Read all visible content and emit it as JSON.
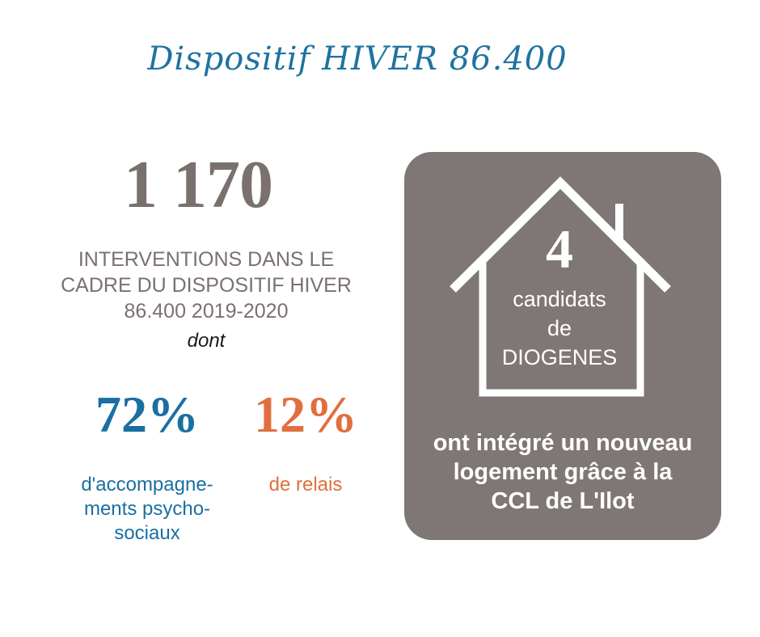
{
  "title": "Dispositif HIVER 86.400",
  "stats": {
    "total_number": "1 170",
    "total_caption_lines": [
      "INTERVENTIONS DANS LE",
      "CADRE DU DISPOSITIF HIVER",
      "86.400 2019-2020"
    ],
    "dont": "dont",
    "breakdown": [
      {
        "value": "72%",
        "caption_lines": [
          "d'accompagne-",
          "ments psycho-",
          "sociaux"
        ],
        "color": "#1a6fa2"
      },
      {
        "value": "12%",
        "caption_lines": [
          "de relais"
        ],
        "color": "#e06f3f"
      }
    ]
  },
  "card": {
    "background": "#7f7775",
    "icon": "house-icon",
    "number": "4",
    "house_text_lines": [
      "candidats",
      "de",
      "DIOGENES"
    ],
    "caption_lines": [
      "ont intégré un nouveau",
      "logement grâce à la",
      "CCL de L'Ilot"
    ]
  }
}
